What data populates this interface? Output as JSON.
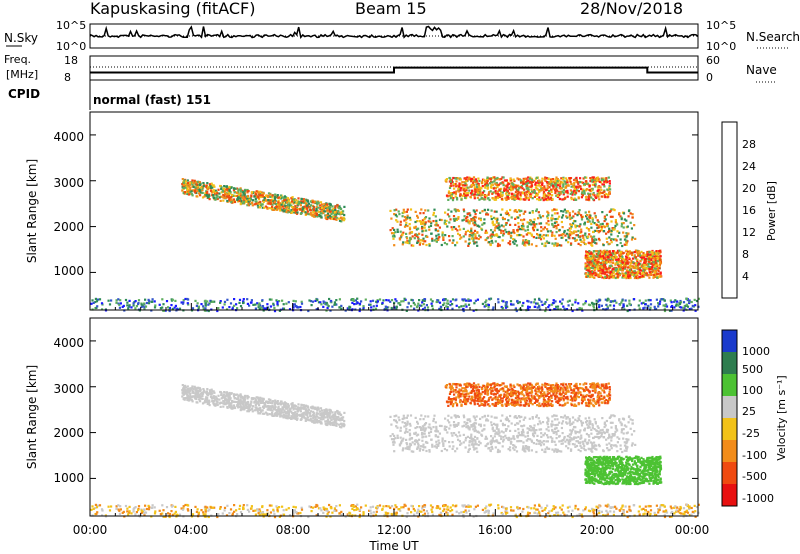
{
  "header": {
    "station": "Kapuskasing (fitACF)",
    "beam": "Beam 15",
    "date": "28/Nov/2018"
  },
  "nsky_panel": {
    "label": "N.Sky",
    "right_label": "N.Search",
    "left_ticks": [
      "10^5",
      "10^0"
    ],
    "right_ticks": [
      "10^5",
      "10^0"
    ]
  },
  "freq_panel": {
    "label_top": "Freq.",
    "label_unit": "[MHz]",
    "right_label": "Nave",
    "left_ticks": [
      "18",
      "8"
    ],
    "right_ticks": [
      "60",
      "0"
    ]
  },
  "cpid": {
    "label": "CPID",
    "value": "normal (fast) 151"
  },
  "power_panel": {
    "ylabel": "Slant Range [km]",
    "yticks": [
      "1000",
      "2000",
      "3000",
      "4000"
    ],
    "colorbar_label": "Power [dB]",
    "colorbar_ticks": [
      "4",
      "8",
      "12",
      "16",
      "20",
      "24",
      "28"
    ],
    "colors": [
      "#1a1aff",
      "#3355cc",
      "#2e8b57",
      "#5fae5f",
      "#f2c218",
      "#f28c1a",
      "#f04a10",
      "#ff1a1a"
    ]
  },
  "velocity_panel": {
    "ylabel": "Slant Range [km]",
    "yticks": [
      "1000",
      "2000",
      "3000",
      "4000"
    ],
    "colorbar_label": "Velocity  [m s⁻¹]",
    "colorbar_ticks": [
      "1000",
      "500",
      "100",
      "25",
      "-25",
      "-100",
      "-500",
      "-1000"
    ],
    "colors": [
      "#1a3acc",
      "#2e7d4f",
      "#4cc233",
      "#c8c8c8",
      "#f2c218",
      "#f28c1a",
      "#f04a10",
      "#e81010"
    ]
  },
  "x_axis": {
    "ticks": [
      "00:00",
      "04:00",
      "08:00",
      "12:00",
      "16:00",
      "20:00",
      "00:00"
    ],
    "label": "Time UT"
  },
  "chart_data": {
    "type": "heatmap",
    "x_range_hours": [
      0,
      24
    ],
    "y_range_km": [
      180,
      4500
    ],
    "freq_steps": [
      {
        "from_h": 0,
        "to_h": 12,
        "freq_mhz": 10.5
      },
      {
        "from_h": 12,
        "to_h": 22,
        "freq_mhz": 13.2
      },
      {
        "from_h": 22,
        "to_h": 24,
        "freq_mhz": 10.5
      }
    ],
    "power_regions": [
      {
        "t": [
          3.6,
          10.0
        ],
        "r": [
          2200,
          3000
        ],
        "level": "mixed"
      },
      {
        "t": [
          11.8,
          21.5
        ],
        "r": [
          1600,
          2400
        ],
        "level": "mixed"
      },
      {
        "t": [
          14.0,
          20.5
        ],
        "r": [
          2600,
          3100
        ],
        "level": "high"
      },
      {
        "t": [
          19.5,
          22.5
        ],
        "r": [
          900,
          1500
        ],
        "level": "high"
      },
      {
        "t": [
          0,
          24
        ],
        "r": [
          180,
          450
        ],
        "level": "low"
      }
    ]
  }
}
